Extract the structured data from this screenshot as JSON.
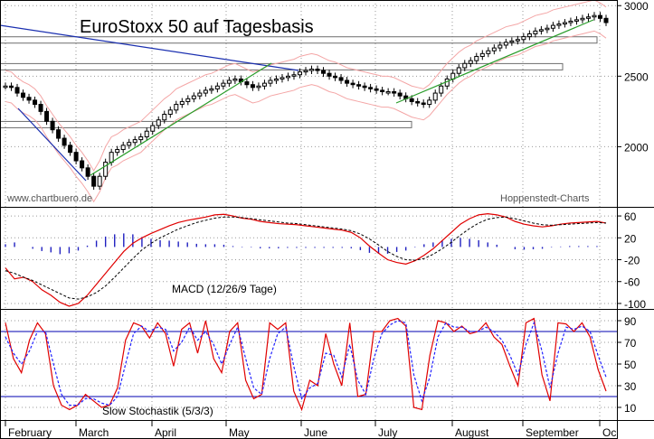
{
  "title": "EuroStoxx 50 auf Tagesbasis",
  "credits": {
    "left": "www.chartbuero.de",
    "right": "Hoppenstedt-Charts"
  },
  "months": [
    "February",
    "March",
    "April",
    "May",
    "June",
    "July",
    "August",
    "September",
    "Oc"
  ],
  "colors": {
    "candle": "#000000",
    "bollinger": "#f4a6a6",
    "macd_line": "#e00000",
    "signal_line": "#000000",
    "histogram": "#2020c0",
    "stoch_k": "#e00000",
    "stoch_d": "#2020ff",
    "trend_down": "#1a2fb0",
    "trend_up": "#2a9d2a",
    "level_band": "#6e6e6e",
    "grid": "#9a9a9a",
    "threshold": "#0000b0"
  },
  "chart_data": [
    {
      "type": "candlestick",
      "title": "EuroStoxx 50 auf Tagesbasis",
      "yticks": [
        2000,
        2500,
        3000
      ],
      "ylim": [
        1580,
        3040
      ],
      "x_months": [
        "February",
        "March",
        "April",
        "May",
        "June",
        "July",
        "August",
        "September",
        "Oc"
      ],
      "close_series": [
        2430,
        2420,
        2380,
        2350,
        2330,
        2300,
        2250,
        2180,
        2120,
        2060,
        2010,
        1960,
        1900,
        1850,
        1790,
        1720,
        1790,
        1890,
        1960,
        1980,
        2010,
        2030,
        2050,
        2070,
        2110,
        2150,
        2190,
        2230,
        2260,
        2300,
        2320,
        2340,
        2360,
        2380,
        2400,
        2410,
        2430,
        2450,
        2470,
        2480,
        2460,
        2440,
        2420,
        2430,
        2450,
        2470,
        2480,
        2490,
        2500,
        2510,
        2530,
        2540,
        2550,
        2540,
        2520,
        2500,
        2490,
        2470,
        2450,
        2440,
        2430,
        2420,
        2410,
        2400,
        2390,
        2390,
        2380,
        2360,
        2340,
        2320,
        2310,
        2300,
        2330,
        2380,
        2430,
        2480,
        2520,
        2560,
        2590,
        2610,
        2640,
        2660,
        2680,
        2700,
        2720,
        2740,
        2750,
        2760,
        2780,
        2800,
        2820,
        2830,
        2840,
        2860,
        2870,
        2880,
        2890,
        2900,
        2910,
        2920,
        2930,
        2910,
        2880
      ],
      "level_bands": [
        2760,
        2570,
        2160
      ],
      "trend_lines": [
        "down",
        "up",
        "up",
        "up"
      ]
    },
    {
      "type": "line",
      "title": "MACD (12/26/9 Tage)",
      "yticks": [
        60,
        20,
        -20,
        -60,
        -100
      ],
      "ylim": [
        -110,
        75
      ],
      "series": [
        {
          "values": [
            -35,
            -55,
            -52,
            -60,
            -75,
            -85,
            -98,
            -105,
            -100,
            -85,
            -65,
            -45,
            -25,
            -5,
            10,
            20,
            28,
            35,
            42,
            48,
            52,
            55,
            58,
            62,
            63,
            60,
            56,
            54,
            50,
            48,
            46,
            45,
            44,
            42,
            40,
            38,
            36,
            34,
            30,
            20,
            5,
            -8,
            -20,
            -25,
            -28,
            -22,
            -12,
            0,
            15,
            30,
            45,
            55,
            62,
            64,
            62,
            58,
            50,
            45,
            42,
            40,
            42,
            45,
            47,
            48,
            49,
            50,
            47
          ]
        },
        {
          "values": [
            -40,
            -45,
            -52,
            -58,
            -66,
            -74,
            -82,
            -90,
            -92,
            -88,
            -80,
            -68,
            -52,
            -35,
            -18,
            -2,
            10,
            20,
            28,
            36,
            42,
            48,
            52,
            56,
            58,
            58,
            57,
            55,
            53,
            51,
            49,
            47,
            46,
            44,
            42,
            40,
            38,
            36,
            33,
            27,
            18,
            7,
            -5,
            -14,
            -20,
            -21,
            -18,
            -10,
            0,
            12,
            25,
            37,
            47,
            54,
            57,
            58,
            55,
            51,
            47,
            44,
            43,
            44,
            45,
            46,
            47,
            48,
            47
          ]
        }
      ],
      "histogram": [
        6,
        10,
        0,
        -4,
        -9,
        -12,
        -16,
        -14,
        -8,
        3,
        14,
        23,
        28,
        30,
        28,
        22,
        18,
        15,
        14,
        12,
        10,
        7,
        6,
        6,
        5,
        2,
        -1,
        -1,
        -3,
        -3,
        -3,
        -2,
        -2,
        -2,
        -2,
        -2,
        -2,
        -2,
        -3,
        -7,
        -13,
        -15,
        -15,
        -11,
        -8,
        -1,
        6,
        10,
        15,
        18,
        20,
        18,
        15,
        10,
        5,
        0,
        -5,
        -6,
        -5,
        -4,
        -1,
        1,
        2,
        2,
        2,
        2,
        0
      ]
    },
    {
      "type": "line",
      "title": "Slow Stochastik (5/3/3)",
      "yticks": [
        90,
        70,
        50,
        30,
        10
      ],
      "ylim": [
        0,
        100
      ],
      "thresholds": [
        80,
        20
      ],
      "series": [
        {
          "values": [
            88,
            55,
            42,
            72,
            88,
            78,
            30,
            12,
            8,
            12,
            22,
            16,
            10,
            12,
            28,
            72,
            88,
            85,
            74,
            88,
            78,
            48,
            82,
            88,
            60,
            90,
            55,
            42,
            80,
            88,
            35,
            18,
            22,
            88,
            82,
            88,
            25,
            8,
            35,
            30,
            78,
            50,
            30,
            88,
            20,
            22,
            80,
            80,
            90,
            92,
            85,
            10,
            8,
            58,
            90,
            88,
            80,
            85,
            78,
            80,
            88,
            75,
            68,
            48,
            30,
            88,
            92,
            40,
            16,
            88,
            87,
            80,
            88,
            75,
            45,
            25
          ]
        },
        {
          "values": [
            75,
            60,
            50,
            62,
            80,
            80,
            50,
            22,
            12,
            12,
            18,
            18,
            14,
            12,
            20,
            50,
            78,
            85,
            80,
            84,
            82,
            62,
            70,
            84,
            72,
            80,
            68,
            50,
            68,
            84,
            55,
            28,
            22,
            55,
            78,
            84,
            48,
            18,
            28,
            32,
            60,
            58,
            38,
            68,
            35,
            22,
            55,
            78,
            86,
            90,
            88,
            40,
            16,
            38,
            75,
            88,
            84,
            84,
            80,
            80,
            84,
            80,
            72,
            58,
            40,
            68,
            88,
            62,
            28,
            60,
            84,
            82,
            85,
            80,
            58,
            38
          ]
        }
      ]
    }
  ]
}
